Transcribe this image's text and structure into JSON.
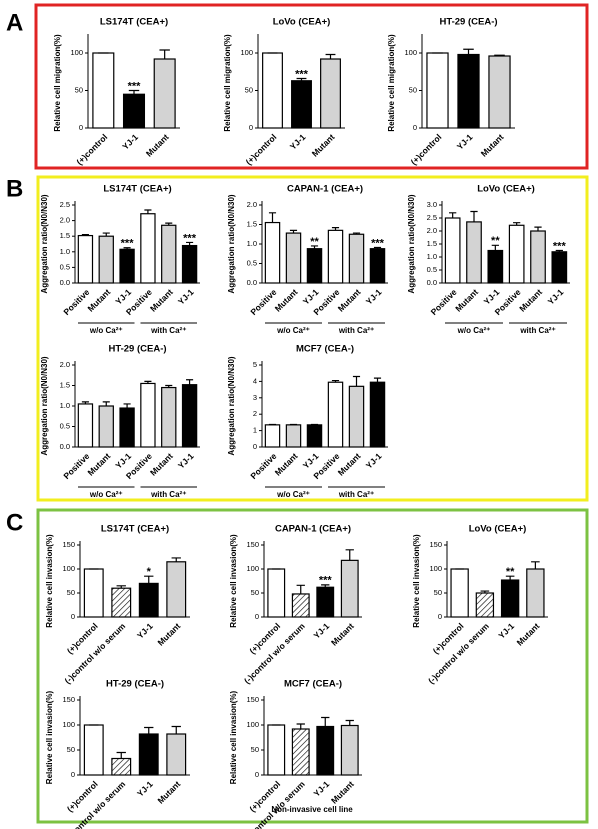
{
  "panel_labels": [
    "A",
    "B",
    "C"
  ],
  "footnote": "Non-invasive cell line",
  "chart_data": [
    {
      "type": "bar",
      "title": "LS174T (CEA+)",
      "y_label": "Relative cell migration(%)",
      "categories": [
        "(+)control",
        "YJ-1",
        "Mutant"
      ],
      "values": [
        100,
        45,
        92
      ],
      "errors": [
        0,
        5,
        12
      ],
      "colors": [
        "#ffffff",
        "#000000",
        "#d3d3d3"
      ],
      "ylim": [
        0,
        120
      ],
      "yticks": [
        0,
        50,
        100
      ],
      "annotations": [
        {
          "index": 1,
          "text": "***"
        }
      ]
    },
    {
      "type": "bar",
      "title": "LoVo (CEA+)",
      "y_label": "Relative cell migration(%)",
      "categories": [
        "(+)control",
        "YJ-1",
        "Mutant"
      ],
      "values": [
        100,
        63,
        92
      ],
      "errors": [
        0,
        3,
        6
      ],
      "colors": [
        "#ffffff",
        "#000000",
        "#d3d3d3"
      ],
      "ylim": [
        0,
        120
      ],
      "yticks": [
        0,
        50,
        100
      ],
      "annotations": [
        {
          "index": 1,
          "text": "***"
        }
      ]
    },
    {
      "type": "bar",
      "title": "HT-29 (CEA-)",
      "y_label": "Relative cell migration(%)",
      "categories": [
        "(+)control",
        "YJ-1",
        "Mutant"
      ],
      "values": [
        100,
        98,
        96
      ],
      "errors": [
        0,
        7,
        1
      ],
      "colors": [
        "#ffffff",
        "#000000",
        "#d3d3d3"
      ],
      "ylim": [
        0,
        120
      ],
      "yticks": [
        0,
        50,
        100
      ]
    },
    {
      "type": "bar",
      "title": "LS174T (CEA+)",
      "y_label": "Aggregation ratio(N0/N30)",
      "categories": [
        "Positive",
        "Mutant",
        "YJ-1",
        "Positive",
        "Mutant",
        "YJ-1"
      ],
      "values": [
        1.52,
        1.5,
        1.08,
        2.22,
        1.85,
        1.2
      ],
      "errors": [
        0.03,
        0.1,
        0.05,
        0.12,
        0.07,
        0.1
      ],
      "colors": [
        "#ffffff",
        "#d3d3d3",
        "#000000",
        "#ffffff",
        "#d3d3d3",
        "#000000"
      ],
      "ylim": [
        0,
        2.5
      ],
      "yticks": [
        {
          "value": 0,
          "label": "0.0"
        },
        0.5,
        {
          "value": 1,
          "label": "1.0"
        },
        1.5,
        {
          "value": 2,
          "label": "2.0"
        },
        2.5
      ],
      "annotations": [
        {
          "index": 2,
          "text": "***"
        },
        {
          "index": 5,
          "text": "***"
        }
      ],
      "groups": [
        "w/o Ca²⁺",
        "with Ca²⁺"
      ]
    },
    {
      "type": "bar",
      "title": "CAPAN-1 (CEA+)",
      "y_label": "Aggregation ratio(N0/N30)",
      "categories": [
        "Positive",
        "Mutant",
        "YJ-1",
        "Positive",
        "Mutant",
        "YJ-1"
      ],
      "values": [
        1.55,
        1.28,
        0.88,
        1.35,
        1.25,
        0.88
      ],
      "errors": [
        0.25,
        0.07,
        0.07,
        0.07,
        0.03,
        0.03
      ],
      "colors": [
        "#ffffff",
        "#d3d3d3",
        "#000000",
        "#ffffff",
        "#d3d3d3",
        "#000000"
      ],
      "ylim": [
        0,
        2
      ],
      "yticks": [
        {
          "value": 0,
          "label": "0.0"
        },
        0.5,
        {
          "value": 1,
          "label": "1.0"
        },
        1.5,
        {
          "value": 2,
          "label": "2.0"
        }
      ],
      "annotations": [
        {
          "index": 2,
          "text": "**"
        },
        {
          "index": 5,
          "text": "***"
        }
      ],
      "groups": [
        "w/o Ca²⁺",
        "with Ca²⁺"
      ]
    },
    {
      "type": "bar",
      "title": "LoVo (CEA+)",
      "y_label": "Aggregation ratio(N0/N30)",
      "categories": [
        "Positive",
        "Mutant",
        "YJ-1",
        "Positive",
        "Mutant",
        "YJ-1"
      ],
      "values": [
        2.5,
        2.35,
        1.25,
        2.22,
        2.0,
        1.2
      ],
      "errors": [
        0.2,
        0.4,
        0.2,
        0.1,
        0.15,
        0.05
      ],
      "colors": [
        "#ffffff",
        "#d3d3d3",
        "#000000",
        "#ffffff",
        "#d3d3d3",
        "#000000"
      ],
      "ylim": [
        0,
        3
      ],
      "yticks": [
        {
          "value": 0,
          "label": "0.0"
        },
        0.5,
        {
          "value": 1,
          "label": "1.0"
        },
        1.5,
        {
          "value": 2,
          "label": "2.0"
        },
        2.5,
        {
          "value": 3,
          "label": "3.0"
        }
      ],
      "annotations": [
        {
          "index": 2,
          "text": "**"
        },
        {
          "index": 5,
          "text": "***"
        }
      ],
      "groups": [
        "w/o Ca²⁺",
        "with Ca²⁺"
      ]
    },
    {
      "type": "bar",
      "title": "HT-29 (CEA-)",
      "y_label": "Aggregation ratio(N0/N30)",
      "categories": [
        "Positive",
        "Mutant",
        "YJ-1",
        "Positive",
        "Mutant",
        "YJ-1"
      ],
      "values": [
        1.05,
        1.0,
        0.95,
        1.55,
        1.45,
        1.52
      ],
      "errors": [
        0.05,
        0.1,
        0.1,
        0.05,
        0.05,
        0.12
      ],
      "colors": [
        "#ffffff",
        "#d3d3d3",
        "#000000",
        "#ffffff",
        "#d3d3d3",
        "#000000"
      ],
      "ylim": [
        0,
        2
      ],
      "yticks": [
        {
          "value": 0,
          "label": "0.0"
        },
        0.5,
        {
          "value": 1,
          "label": "1.0"
        },
        1.5,
        {
          "value": 2,
          "label": "2.0"
        }
      ],
      "groups": [
        "w/o Ca²⁺",
        "with Ca²⁺"
      ]
    },
    {
      "type": "bar",
      "title": "MCF7 (CEA-)",
      "y_label": "Aggregation ratio(N0/N30)",
      "categories": [
        "Positive",
        "Mutant",
        "YJ-1",
        "Positive",
        "Mutant",
        "YJ-1"
      ],
      "values": [
        1.35,
        1.35,
        1.35,
        3.95,
        3.7,
        3.95
      ],
      "errors": [
        0.02,
        0.02,
        0.02,
        0.1,
        0.6,
        0.25
      ],
      "colors": [
        "#ffffff",
        "#d3d3d3",
        "#000000",
        "#ffffff",
        "#d3d3d3",
        "#000000"
      ],
      "ylim": [
        0,
        5
      ],
      "yticks": [
        0,
        1,
        2,
        3,
        4,
        5
      ],
      "groups": [
        "w/o Ca²⁺",
        "with Ca²⁺"
      ]
    },
    {
      "type": "bar",
      "title": "LS174T (CEA+)",
      "y_label": "Relative cell invasion(%)",
      "categories": [
        "(+)control",
        "(-)control w/o serum",
        "YJ-1",
        "Mutant"
      ],
      "values": [
        100,
        60,
        70,
        115
      ],
      "errors": [
        0,
        5,
        15,
        8
      ],
      "colors": [
        "#ffffff",
        "#ffffff",
        "#000000",
        "#d3d3d3"
      ],
      "hatched": [
        false,
        true,
        false,
        false
      ],
      "ylim": [
        0,
        150
      ],
      "yticks": [
        0,
        50,
        100,
        150
      ],
      "annotations": [
        {
          "index": 2,
          "text": "*"
        }
      ]
    },
    {
      "type": "bar",
      "title": "CAPAN-1 (CEA+)",
      "y_label": "Relative cell invasion(%)",
      "categories": [
        "(+)control",
        "(-)control w/o serum",
        "YJ-1",
        "Mutant"
      ],
      "values": [
        100,
        48,
        62,
        118
      ],
      "errors": [
        0,
        18,
        5,
        22
      ],
      "colors": [
        "#ffffff",
        "#ffffff",
        "#000000",
        "#d3d3d3"
      ],
      "hatched": [
        false,
        true,
        false,
        false
      ],
      "ylim": [
        0,
        150
      ],
      "yticks": [
        0,
        50,
        100,
        150
      ],
      "annotations": [
        {
          "index": 2,
          "text": "***"
        }
      ]
    },
    {
      "type": "bar",
      "title": "LoVo (CEA+)",
      "y_label": "Relative cell invasion(%)",
      "categories": [
        "(+)control",
        "(-)control w/o serum",
        "YJ-1",
        "Mutant"
      ],
      "values": [
        100,
        50,
        77,
        100
      ],
      "errors": [
        0,
        4,
        8,
        15
      ],
      "colors": [
        "#ffffff",
        "#ffffff",
        "#000000",
        "#d3d3d3"
      ],
      "hatched": [
        false,
        true,
        false,
        false
      ],
      "ylim": [
        0,
        150
      ],
      "yticks": [
        0,
        50,
        100,
        150
      ],
      "annotations": [
        {
          "index": 2,
          "text": "**"
        }
      ]
    },
    {
      "type": "bar",
      "title": "HT-29 (CEA-)",
      "y_label": "Relative cell invasion(%)",
      "categories": [
        "(+)control",
        "(-)control w/o serum",
        "YJ-1",
        "Mutant"
      ],
      "values": [
        100,
        33,
        82,
        82
      ],
      "errors": [
        0,
        12,
        13,
        15
      ],
      "colors": [
        "#ffffff",
        "#ffffff",
        "#000000",
        "#d3d3d3"
      ],
      "hatched": [
        false,
        true,
        false,
        false
      ],
      "ylim": [
        0,
        150
      ],
      "yticks": [
        0,
        50,
        100,
        150
      ]
    },
    {
      "type": "bar",
      "title": "MCF7 (CEA-)",
      "y_label": "Relative cell invasion(%)",
      "categories": [
        "(+)control",
        "(-)control w/o serum",
        "YJ-1",
        "Mutant"
      ],
      "values": [
        100,
        92,
        97,
        99
      ],
      "errors": [
        0,
        10,
        18,
        10
      ],
      "colors": [
        "#ffffff",
        "#ffffff",
        "#000000",
        "#d3d3d3"
      ],
      "hatched": [
        false,
        true,
        false,
        false
      ],
      "ylim": [
        0,
        150
      ],
      "yticks": [
        0,
        50,
        100,
        150
      ]
    }
  ]
}
